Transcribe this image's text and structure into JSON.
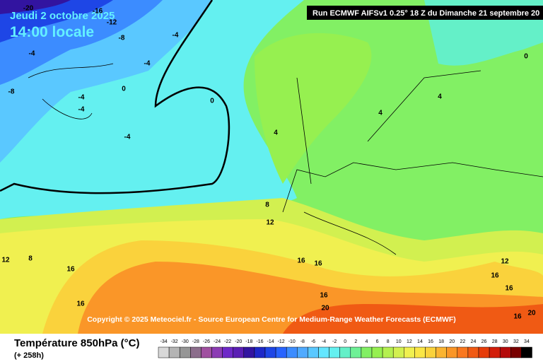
{
  "header": {
    "date": "Jeudi 2 octobre 2025",
    "time": "14:00 locale",
    "run": "Run ECMWF AIFSv1 0.25° 18 Z du Dimanche 21 septembre 20"
  },
  "copyright": "Copyright © 2025 Meteociel.fr - Source European Centre for Medium-Range Weather Forecasts (ECMWF)",
  "legend": {
    "title": "Température 850hPa (°C)",
    "lead": "(+ 258h)",
    "ticks": [
      -34,
      -32,
      -30,
      -28,
      -26,
      -24,
      -22,
      -20,
      -18,
      -16,
      -14,
      -12,
      -10,
      -8,
      -6,
      -4,
      -2,
      0,
      2,
      4,
      6,
      8,
      10,
      12,
      14,
      16,
      18,
      20,
      22,
      24,
      26,
      28,
      30,
      32,
      34
    ],
    "colors": [
      "#d8d8d8",
      "#b4b4b4",
      "#969696",
      "#8c6e8c",
      "#a050a0",
      "#8c3cb4",
      "#6e28c8",
      "#5a1eb4",
      "#3214a0",
      "#1e28c8",
      "#1e46e6",
      "#2864ff",
      "#3c8cff",
      "#50aaff",
      "#5ac8ff",
      "#64e6ff",
      "#64f0f0",
      "#64f0c8",
      "#6ef096",
      "#82f064",
      "#96f050",
      "#b4f050",
      "#d2f050",
      "#f0f050",
      "#fae646",
      "#fad23c",
      "#fab432",
      "#fa9628",
      "#fa7820",
      "#f05a14",
      "#e63c0a",
      "#d21e0a",
      "#b40a0a",
      "#780000",
      "#000000"
    ]
  },
  "contour_labels": [
    -20,
    -16,
    -12,
    -8,
    -4,
    -4,
    -4,
    -8,
    -4,
    -4,
    0,
    0,
    -4,
    4,
    0,
    4,
    4,
    8,
    12,
    12,
    8,
    16,
    16,
    16,
    16,
    16,
    20,
    12,
    16,
    16,
    16,
    20
  ]
}
